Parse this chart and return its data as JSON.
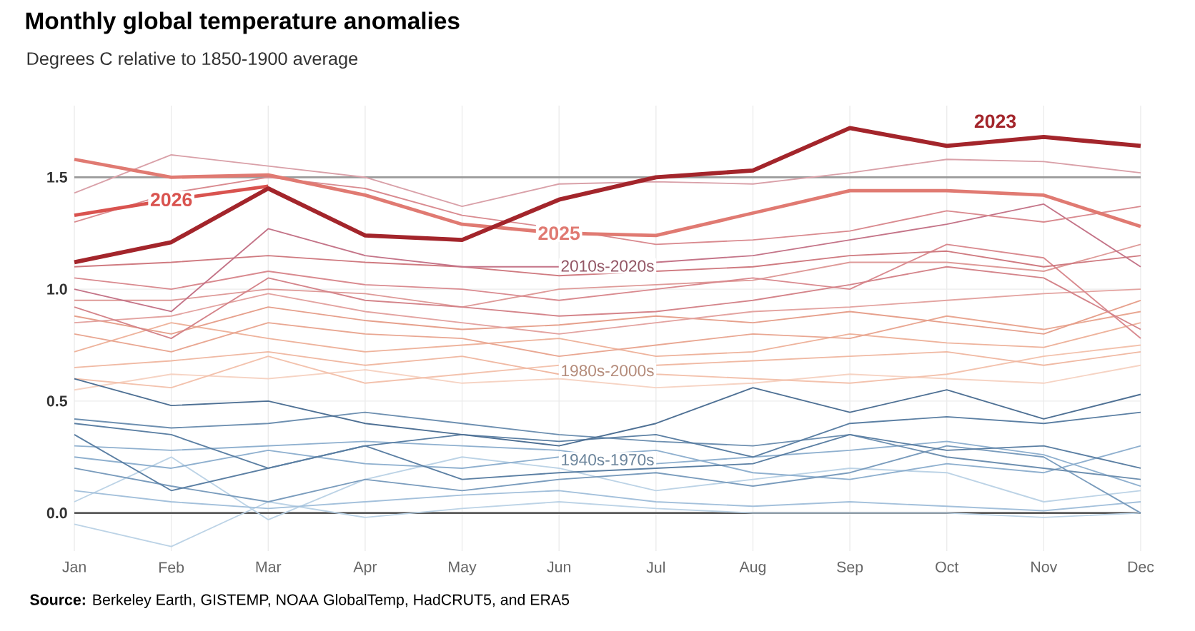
{
  "chart_data": {
    "type": "line",
    "title": "Monthly global temperature anomalies",
    "subtitle": "Degrees C relative to 1850-1900 average",
    "categories": [
      "Jan",
      "Feb",
      "Mar",
      "Apr",
      "May",
      "Jun",
      "Jul",
      "Aug",
      "Sep",
      "Oct",
      "Nov",
      "Dec"
    ],
    "ylim": [
      -0.17,
      1.82
    ],
    "yticks": [
      {
        "value": 0,
        "label": "0.0"
      },
      {
        "value": 0.5,
        "label": "0.5"
      },
      {
        "value": 1,
        "label": "1.0"
      },
      {
        "value": 1.5,
        "label": "1.5"
      }
    ],
    "grid": true,
    "ref_lines": [
      {
        "axis": "y",
        "value": 0,
        "color": "#5a5a5a"
      },
      {
        "axis": "y",
        "value": 1.5,
        "color": "#9a9a9a"
      }
    ],
    "annotations": [
      "2010s-2020s",
      "1980s-2000s",
      "1940s-1970s",
      "**Source:** Berkeley Earth, GISTEMP, NOAA GlobalTemp, HadCRUT5, and ERA5"
    ],
    "series": [
      {
        "color": "#f6d3c3",
        "values": [
          0.55,
          0.62,
          0.6,
          0.64,
          0.58,
          0.6,
          0.56,
          0.58,
          0.62,
          0.6,
          0.58,
          0.66
        ]
      },
      {
        "color": "#f3c2ad",
        "values": [
          0.6,
          0.56,
          0.7,
          0.58,
          0.62,
          0.66,
          0.62,
          0.6,
          0.58,
          0.62,
          0.7,
          0.75
        ]
      },
      {
        "color": "#f0b9a3",
        "values": [
          0.65,
          0.68,
          0.72,
          0.66,
          0.7,
          0.62,
          0.66,
          0.68,
          0.7,
          0.72,
          0.66,
          0.72
        ]
      },
      {
        "color": "#eeb39c",
        "values": [
          0.72,
          0.85,
          0.78,
          0.72,
          0.75,
          0.78,
          0.7,
          0.72,
          0.8,
          0.76,
          0.74,
          0.85
        ]
      },
      {
        "color": "#e9a792",
        "values": [
          0.8,
          0.72,
          0.85,
          0.8,
          0.78,
          0.7,
          0.75,
          0.8,
          0.78,
          0.88,
          0.82,
          0.9
        ]
      },
      {
        "color": "#e6a08c",
        "values": [
          0.88,
          0.8,
          0.92,
          0.86,
          0.82,
          0.84,
          0.88,
          0.85,
          0.9,
          0.85,
          0.8,
          0.95
        ]
      },
      {
        "color": "#bcd3e6",
        "values": [
          -0.05,
          -0.15,
          0.05,
          -0.02,
          0.02,
          0.05,
          0.02,
          0.0,
          0.0,
          0.0,
          -0.02,
          0.0
        ]
      },
      {
        "color": "#bcd3e6",
        "values": [
          0.05,
          0.25,
          -0.03,
          0.15,
          0.25,
          0.2,
          0.1,
          0.15,
          0.2,
          0.18,
          0.05,
          0.1
        ]
      },
      {
        "color": "#a3c0db",
        "values": [
          0.1,
          0.05,
          0.02,
          0.05,
          0.08,
          0.1,
          0.05,
          0.03,
          0.05,
          0.03,
          0.01,
          0.05
        ]
      },
      {
        "color": "#8fb0cf",
        "values": [
          0.25,
          0.2,
          0.28,
          0.22,
          0.2,
          0.25,
          0.28,
          0.18,
          0.15,
          0.22,
          0.18,
          0.3
        ]
      },
      {
        "color": "#8fb0cf",
        "values": [
          0.3,
          0.28,
          0.3,
          0.32,
          0.3,
          0.28,
          0.22,
          0.25,
          0.28,
          0.32,
          0.26,
          0.12
        ]
      },
      {
        "color": "#7a9cbd",
        "values": [
          0.2,
          0.12,
          0.05,
          0.15,
          0.1,
          0.15,
          0.18,
          0.12,
          0.18,
          0.3,
          0.25,
          0.0
        ]
      },
      {
        "color": "#6d8fb0",
        "values": [
          0.42,
          0.38,
          0.4,
          0.45,
          0.4,
          0.35,
          0.32,
          0.3,
          0.35,
          0.25,
          0.2,
          0.15
        ]
      },
      {
        "color": "#5b7fa3",
        "values": [
          0.35,
          0.1,
          0.2,
          0.3,
          0.15,
          0.18,
          0.2,
          0.22,
          0.35,
          0.28,
          0.3,
          0.2
        ]
      },
      {
        "color": "#5b7fa3",
        "values": [
          0.4,
          0.35,
          0.2,
          0.3,
          0.35,
          0.32,
          0.35,
          0.25,
          0.4,
          0.43,
          0.4,
          0.45
        ]
      },
      {
        "color": "#4e7094",
        "values": [
          0.6,
          0.48,
          0.5,
          0.4,
          0.35,
          0.3,
          0.4,
          0.56,
          0.45,
          0.55,
          0.42,
          0.53
        ]
      },
      {
        "color": "#e3a3a0",
        "values": [
          0.85,
          0.88,
          0.98,
          0.9,
          0.85,
          0.8,
          0.85,
          0.9,
          0.92,
          0.95,
          0.98,
          1.0
        ]
      },
      {
        "color": "#de9a98",
        "values": [
          0.95,
          0.95,
          1.0,
          0.98,
          0.92,
          1.0,
          1.02,
          1.04,
          1.12,
          1.12,
          1.08,
          1.2
        ]
      },
      {
        "color": "#d98a8f",
        "values": [
          1.05,
          1.0,
          1.08,
          1.02,
          1.0,
          0.95,
          1.0,
          1.05,
          1.0,
          1.2,
          1.14,
          0.78
        ]
      },
      {
        "color": "#d4848a",
        "values": [
          0.92,
          0.78,
          1.05,
          0.95,
          0.92,
          0.88,
          0.9,
          0.95,
          1.02,
          1.1,
          1.05,
          0.82
        ]
      },
      {
        "color": "#cf7a80",
        "values": [
          1.1,
          1.12,
          1.15,
          1.12,
          1.1,
          1.06,
          1.08,
          1.1,
          1.15,
          1.17,
          1.1,
          1.15
        ]
      },
      {
        "color": "#c47488",
        "values": [
          1.0,
          0.9,
          1.27,
          1.15,
          1.1,
          1.1,
          1.12,
          1.15,
          1.22,
          1.29,
          1.38,
          1.1
        ]
      },
      {
        "color": "#d98a8f",
        "values": [
          1.3,
          1.43,
          1.5,
          1.45,
          1.33,
          1.27,
          1.2,
          1.22,
          1.26,
          1.35,
          1.3,
          1.37
        ]
      },
      {
        "color": "#d9a0a8",
        "values": [
          1.43,
          1.6,
          1.55,
          1.5,
          1.37,
          1.47,
          1.48,
          1.47,
          1.52,
          1.58,
          1.57,
          1.52
        ]
      },
      {
        "name": "2026",
        "color": "#d9534f",
        "values": [
          1.33,
          1.4,
          1.46,
          null,
          null,
          null,
          null,
          null,
          null,
          null,
          null,
          null
        ]
      },
      {
        "name": "2025",
        "color": "#e07a72",
        "values": [
          1.58,
          1.5,
          1.51,
          1.42,
          1.29,
          1.25,
          1.24,
          1.34,
          1.44,
          1.44,
          1.42,
          1.28
        ]
      },
      {
        "name": "2023",
        "color": "#a3252b",
        "values": [
          1.12,
          1.21,
          1.45,
          1.24,
          1.22,
          1.4,
          1.5,
          1.53,
          1.72,
          1.64,
          1.68,
          1.64
        ]
      }
    ]
  }
}
